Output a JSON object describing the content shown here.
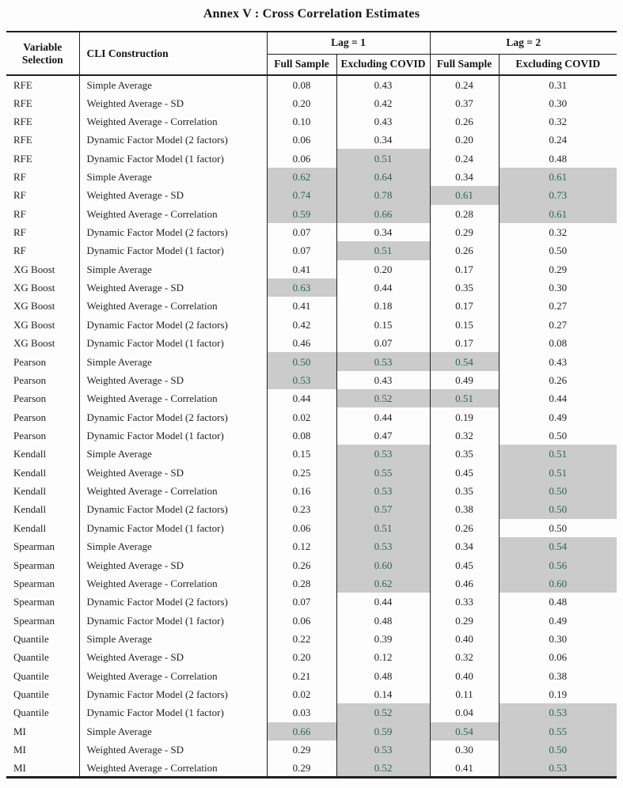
{
  "title": "Annex V : Cross Correlation Estimates",
  "table": {
    "headers": {
      "variable_selection": "Variable Selection",
      "cli_construction": "CLI Construction",
      "lag1": "Lag = 1",
      "lag2": "Lag = 2",
      "lag1_full_sample": "Full Sample",
      "lag1_excluding_covid": "Excluding COVID",
      "lag2_full_sample": "Full Sample",
      "lag2_excluding_covid": "Excluding COVID"
    },
    "colors": {
      "highlight_bg": "#cbcbcb",
      "highlight_text": "#2d6455",
      "border": "#1f1f1f"
    },
    "rows": [
      {
        "variable": "RFE",
        "cli": "Simple Average",
        "values": [
          "0.08",
          "0.43",
          "0.24",
          "0.31"
        ],
        "highlight": [
          false,
          false,
          false,
          false
        ]
      },
      {
        "variable": "RFE",
        "cli": "Weighted Average - SD",
        "values": [
          "0.20",
          "0.42",
          "0.37",
          "0.30"
        ],
        "highlight": [
          false,
          false,
          false,
          false
        ]
      },
      {
        "variable": "RFE",
        "cli": "Weighted Average - Correlation",
        "values": [
          "0.10",
          "0.43",
          "0.26",
          "0.32"
        ],
        "highlight": [
          false,
          false,
          false,
          false
        ]
      },
      {
        "variable": "RFE",
        "cli": "Dynamic Factor Model (2 factors)",
        "values": [
          "0.06",
          "0.34",
          "0.20",
          "0.24"
        ],
        "highlight": [
          false,
          false,
          false,
          false
        ]
      },
      {
        "variable": "RFE",
        "cli": "Dynamic Factor Model (1 factor)",
        "values": [
          "0.06",
          "0.51",
          "0.24",
          "0.48"
        ],
        "highlight": [
          false,
          true,
          false,
          false
        ]
      },
      {
        "variable": "RF",
        "cli": "Simple Average",
        "values": [
          "0.62",
          "0.64",
          "0.34",
          "0.61"
        ],
        "highlight": [
          true,
          true,
          false,
          true
        ]
      },
      {
        "variable": "RF",
        "cli": "Weighted Average - SD",
        "values": [
          "0.74",
          "0.78",
          "0.61",
          "0.73"
        ],
        "highlight": [
          true,
          true,
          true,
          true
        ]
      },
      {
        "variable": "RF",
        "cli": "Weighted Average - Correlation",
        "values": [
          "0.59",
          "0.66",
          "0.28",
          "0.61"
        ],
        "highlight": [
          true,
          true,
          false,
          true
        ]
      },
      {
        "variable": "RF",
        "cli": "Dynamic Factor Model (2 factors)",
        "values": [
          "0.07",
          "0.34",
          "0.29",
          "0.32"
        ],
        "highlight": [
          false,
          false,
          false,
          false
        ]
      },
      {
        "variable": "RF",
        "cli": "Dynamic Factor Model (1 factor)",
        "values": [
          "0.07",
          "0.51",
          "0.26",
          "0.50"
        ],
        "highlight": [
          false,
          true,
          false,
          false
        ]
      },
      {
        "variable": "XG Boost",
        "cli": "Simple Average",
        "values": [
          "0.41",
          "0.20",
          "0.17",
          "0.29"
        ],
        "highlight": [
          false,
          false,
          false,
          false
        ]
      },
      {
        "variable": "XG Boost",
        "cli": "Weighted Average - SD",
        "values": [
          "0.63",
          "0.44",
          "0.35",
          "0.30"
        ],
        "highlight": [
          true,
          false,
          false,
          false
        ]
      },
      {
        "variable": "XG Boost",
        "cli": "Weighted Average - Correlation",
        "values": [
          "0.41",
          "0.18",
          "0.17",
          "0.27"
        ],
        "highlight": [
          false,
          false,
          false,
          false
        ]
      },
      {
        "variable": "XG Boost",
        "cli": "Dynamic Factor Model (2 factors)",
        "values": [
          "0.42",
          "0.15",
          "0.15",
          "0.27"
        ],
        "highlight": [
          false,
          false,
          false,
          false
        ]
      },
      {
        "variable": "XG Boost",
        "cli": "Dynamic Factor Model (1 factor)",
        "values": [
          "0.46",
          "0.07",
          "0.17",
          "0.08"
        ],
        "highlight": [
          false,
          false,
          false,
          false
        ]
      },
      {
        "variable": "Pearson",
        "cli": "Simple Average",
        "values": [
          "0.50",
          "0.53",
          "0.54",
          "0.43"
        ],
        "highlight": [
          true,
          true,
          true,
          false
        ]
      },
      {
        "variable": "Pearson",
        "cli": "Weighted Average - SD",
        "values": [
          "0.53",
          "0.43",
          "0.49",
          "0.26"
        ],
        "highlight": [
          true,
          false,
          false,
          false
        ]
      },
      {
        "variable": "Pearson",
        "cli": "Weighted Average - Correlation",
        "values": [
          "0.44",
          "0.52",
          "0.51",
          "0.44"
        ],
        "highlight": [
          false,
          true,
          true,
          false
        ]
      },
      {
        "variable": "Pearson",
        "cli": "Dynamic Factor Model (2 factors)",
        "values": [
          "0.02",
          "0.44",
          "0.19",
          "0.49"
        ],
        "highlight": [
          false,
          false,
          false,
          false
        ]
      },
      {
        "variable": "Pearson",
        "cli": "Dynamic Factor Model (1 factor)",
        "values": [
          "0.08",
          "0.47",
          "0.32",
          "0.50"
        ],
        "highlight": [
          false,
          false,
          false,
          false
        ]
      },
      {
        "variable": "Kendall",
        "cli": "Simple Average",
        "values": [
          "0.15",
          "0.53",
          "0.35",
          "0.51"
        ],
        "highlight": [
          false,
          true,
          false,
          true
        ]
      },
      {
        "variable": "Kendall",
        "cli": "Weighted Average - SD",
        "values": [
          "0.25",
          "0.55",
          "0.45",
          "0.51"
        ],
        "highlight": [
          false,
          true,
          false,
          true
        ]
      },
      {
        "variable": "Kendall",
        "cli": "Weighted Average - Correlation",
        "values": [
          "0.16",
          "0.53",
          "0.35",
          "0.50"
        ],
        "highlight": [
          false,
          true,
          false,
          true
        ]
      },
      {
        "variable": "Kendall",
        "cli": "Dynamic Factor Model (2 factors)",
        "values": [
          "0.23",
          "0.57",
          "0.38",
          "0.50"
        ],
        "highlight": [
          false,
          true,
          false,
          true
        ]
      },
      {
        "variable": "Kendall",
        "cli": "Dynamic Factor Model (1 factor)",
        "values": [
          "0.06",
          "0.51",
          "0.26",
          "0.50"
        ],
        "highlight": [
          false,
          true,
          false,
          false
        ]
      },
      {
        "variable": "Spearman",
        "cli": "Simple Average",
        "values": [
          "0.12",
          "0.53",
          "0.34",
          "0.54"
        ],
        "highlight": [
          false,
          true,
          false,
          true
        ]
      },
      {
        "variable": "Spearman",
        "cli": "Weighted Average - SD",
        "values": [
          "0.26",
          "0.60",
          "0.45",
          "0.56"
        ],
        "highlight": [
          false,
          true,
          false,
          true
        ]
      },
      {
        "variable": "Spearman",
        "cli": "Weighted Average - Correlation",
        "values": [
          "0.28",
          "0.62",
          "0.46",
          "0.60"
        ],
        "highlight": [
          false,
          true,
          false,
          true
        ]
      },
      {
        "variable": "Spearman",
        "cli": "Dynamic Factor Model (2 factors)",
        "values": [
          "0.07",
          "0.44",
          "0.33",
          "0.48"
        ],
        "highlight": [
          false,
          false,
          false,
          false
        ]
      },
      {
        "variable": "Spearman",
        "cli": "Dynamic Factor Model (1 factor)",
        "values": [
          "0.06",
          "0.48",
          "0.29",
          "0.49"
        ],
        "highlight": [
          false,
          false,
          false,
          false
        ]
      },
      {
        "variable": "Quantile",
        "cli": "Simple Average",
        "values": [
          "0.22",
          "0.39",
          "0.40",
          "0.30"
        ],
        "highlight": [
          false,
          false,
          false,
          false
        ]
      },
      {
        "variable": "Quantile",
        "cli": "Weighted Average - SD",
        "values": [
          "0.20",
          "0.12",
          "0.32",
          "0.06"
        ],
        "highlight": [
          false,
          false,
          false,
          false
        ]
      },
      {
        "variable": "Quantile",
        "cli": "Weighted Average - Correlation",
        "values": [
          "0.21",
          "0.48",
          "0.40",
          "0.38"
        ],
        "highlight": [
          false,
          false,
          false,
          false
        ]
      },
      {
        "variable": "Quantile",
        "cli": "Dynamic Factor Model (2 factors)",
        "values": [
          "0.02",
          "0.14",
          "0.11",
          "0.19"
        ],
        "highlight": [
          false,
          false,
          false,
          false
        ]
      },
      {
        "variable": "Quantile",
        "cli": "Dynamic Factor Model (1 factor)",
        "values": [
          "0.03",
          "0.52",
          "0.04",
          "0.53"
        ],
        "highlight": [
          false,
          true,
          false,
          true
        ]
      },
      {
        "variable": "MI",
        "cli": "Simple Average",
        "values": [
          "0.66",
          "0.59",
          "0.54",
          "0.55"
        ],
        "highlight": [
          true,
          true,
          true,
          true
        ]
      },
      {
        "variable": "MI",
        "cli": "Weighted Average - SD",
        "values": [
          "0.29",
          "0.53",
          "0.30",
          "0.50"
        ],
        "highlight": [
          false,
          true,
          false,
          true
        ]
      },
      {
        "variable": "MI",
        "cli": "Weighted Average - Correlation",
        "values": [
          "0.29",
          "0.52",
          "0.41",
          "0.53"
        ],
        "highlight": [
          false,
          true,
          false,
          true
        ]
      }
    ]
  }
}
